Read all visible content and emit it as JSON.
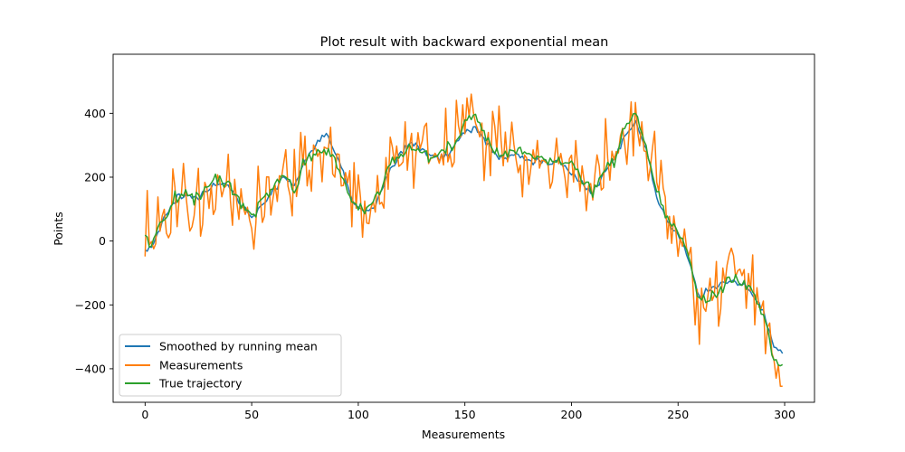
{
  "chart_data": {
    "type": "line",
    "title": "Plot result with backward exponential mean",
    "xlabel": "Measurements",
    "ylabel": "Points",
    "xlim": [
      -15,
      314
    ],
    "ylim": [
      -505,
      585
    ],
    "xticks": [
      0,
      50,
      100,
      150,
      200,
      250,
      300
    ],
    "yticks": [
      -400,
      -200,
      0,
      200,
      400
    ],
    "ytick_labels": [
      "−400",
      "−200",
      "0",
      "200",
      "400"
    ],
    "grid": false,
    "legend_position": "lower-left",
    "series": [
      {
        "name": "Smoothed by running mean",
        "color": "#1f77b4"
      },
      {
        "name": "Measurements",
        "color": "#ff7f0e"
      },
      {
        "name": "True trajectory",
        "color": "#2ca02c"
      }
    ],
    "key_points": {
      "true_trajectory": [
        [
          0,
          10
        ],
        [
          3,
          -10
        ],
        [
          10,
          80
        ],
        [
          15,
          140
        ],
        [
          20,
          150
        ],
        [
          25,
          130
        ],
        [
          30,
          180
        ],
        [
          35,
          200
        ],
        [
          40,
          170
        ],
        [
          45,
          120
        ],
        [
          50,
          80
        ],
        [
          55,
          130
        ],
        [
          60,
          170
        ],
        [
          65,
          210
        ],
        [
          70,
          150
        ],
        [
          75,
          250
        ],
        [
          80,
          270
        ],
        [
          85,
          290
        ],
        [
          90,
          250
        ],
        [
          95,
          150
        ],
        [
          100,
          100
        ],
        [
          105,
          100
        ],
        [
          110,
          160
        ],
        [
          115,
          250
        ],
        [
          120,
          260
        ],
        [
          125,
          300
        ],
        [
          130,
          280
        ],
        [
          135,
          260
        ],
        [
          140,
          280
        ],
        [
          145,
          300
        ],
        [
          150,
          370
        ],
        [
          155,
          400
        ],
        [
          160,
          330
        ],
        [
          165,
          270
        ],
        [
          170,
          280
        ],
        [
          175,
          290
        ],
        [
          180,
          270
        ],
        [
          185,
          260
        ],
        [
          190,
          250
        ],
        [
          195,
          260
        ],
        [
          200,
          240
        ],
        [
          205,
          200
        ],
        [
          210,
          150
        ],
        [
          215,
          220
        ],
        [
          220,
          250
        ],
        [
          225,
          360
        ],
        [
          230,
          390
        ],
        [
          235,
          300
        ],
        [
          240,
          150
        ],
        [
          245,
          80
        ],
        [
          250,
          30
        ],
        [
          255,
          -50
        ],
        [
          260,
          -180
        ],
        [
          265,
          -180
        ],
        [
          270,
          -150
        ],
        [
          275,
          -110
        ],
        [
          280,
          -130
        ],
        [
          285,
          -160
        ],
        [
          290,
          -230
        ],
        [
          295,
          -370
        ],
        [
          298,
          -390
        ]
      ],
      "smoothed_running_mean": [
        [
          0,
          -30
        ],
        [
          3,
          -15
        ],
        [
          10,
          90
        ],
        [
          15,
          135
        ],
        [
          20,
          140
        ],
        [
          25,
          135
        ],
        [
          30,
          165
        ],
        [
          35,
          185
        ],
        [
          40,
          165
        ],
        [
          45,
          110
        ],
        [
          50,
          70
        ],
        [
          55,
          110
        ],
        [
          60,
          160
        ],
        [
          65,
          200
        ],
        [
          70,
          170
        ],
        [
          75,
          250
        ],
        [
          80,
          300
        ],
        [
          85,
          330
        ],
        [
          90,
          270
        ],
        [
          95,
          170
        ],
        [
          100,
          100
        ],
        [
          105,
          90
        ],
        [
          110,
          140
        ],
        [
          115,
          230
        ],
        [
          120,
          270
        ],
        [
          125,
          310
        ],
        [
          130,
          290
        ],
        [
          135,
          265
        ],
        [
          140,
          260
        ],
        [
          145,
          300
        ],
        [
          150,
          340
        ],
        [
          155,
          355
        ],
        [
          160,
          310
        ],
        [
          165,
          265
        ],
        [
          170,
          260
        ],
        [
          175,
          270
        ],
        [
          180,
          250
        ],
        [
          185,
          250
        ],
        [
          190,
          245
        ],
        [
          195,
          250
        ],
        [
          200,
          215
        ],
        [
          205,
          180
        ],
        [
          210,
          150
        ],
        [
          215,
          210
        ],
        [
          220,
          260
        ],
        [
          225,
          330
        ],
        [
          230,
          370
        ],
        [
          235,
          290
        ],
        [
          240,
          140
        ],
        [
          245,
          60
        ],
        [
          250,
          20
        ],
        [
          255,
          -60
        ],
        [
          260,
          -180
        ],
        [
          265,
          -150
        ],
        [
          270,
          -140
        ],
        [
          275,
          -120
        ],
        [
          280,
          -130
        ],
        [
          285,
          -170
        ],
        [
          290,
          -220
        ],
        [
          295,
          -340
        ],
        [
          299,
          -350
        ]
      ],
      "measurements_envelope": {
        "min": -455,
        "max": 535
      }
    }
  }
}
